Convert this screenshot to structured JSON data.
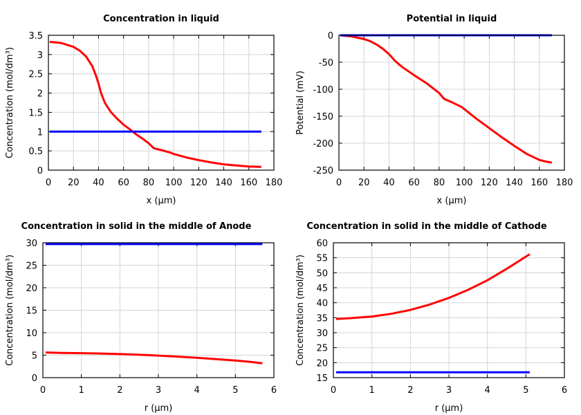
{
  "chart_data": [
    {
      "type": "line",
      "title": "Concentration in liquid",
      "xlabel": "x (µm)",
      "ylabel": "Concentration (mol/dm³)",
      "xlim": [
        0,
        180
      ],
      "ylim": [
        0,
        3.5
      ],
      "xticks": [
        0,
        20,
        40,
        60,
        80,
        100,
        120,
        140,
        160,
        180
      ],
      "yticks": [
        0,
        0.5,
        1,
        1.5,
        2,
        2.5,
        3,
        3.5
      ],
      "grid": true,
      "series": [
        {
          "color": "#ff0000",
          "x": [
            1,
            10,
            20,
            25,
            30,
            35,
            38,
            40,
            42,
            45,
            50,
            55,
            60,
            65,
            70,
            75,
            80,
            84,
            90,
            97,
            100,
            110,
            120,
            130,
            140,
            150,
            160,
            170
          ],
          "y": [
            3.33,
            3.3,
            3.2,
            3.1,
            2.95,
            2.7,
            2.45,
            2.25,
            2.0,
            1.75,
            1.5,
            1.33,
            1.18,
            1.06,
            0.93,
            0.82,
            0.7,
            0.57,
            0.52,
            0.46,
            0.42,
            0.33,
            0.26,
            0.2,
            0.15,
            0.12,
            0.095,
            0.085
          ]
        },
        {
          "color": "#0000ff",
          "x": [
            1,
            170
          ],
          "y": [
            1.0,
            1.0
          ]
        }
      ]
    },
    {
      "type": "line",
      "title": "Potential in liquid",
      "xlabel": "x (µm)",
      "ylabel": "Potential (mV)",
      "xlim": [
        0,
        180
      ],
      "ylim": [
        -250,
        0
      ],
      "xticks": [
        0,
        20,
        40,
        60,
        80,
        100,
        120,
        140,
        160,
        180
      ],
      "yticks": [
        -250,
        -200,
        -150,
        -100,
        -50,
        0
      ],
      "grid": true,
      "series": [
        {
          "color": "#ff0000",
          "x": [
            1,
            10,
            20,
            25,
            30,
            35,
            40,
            45,
            50,
            60,
            70,
            80,
            84,
            90,
            98,
            110,
            120,
            130,
            140,
            150,
            160,
            165,
            170
          ],
          "y": [
            0,
            -2,
            -7,
            -11,
            -17,
            -25,
            -35,
            -48,
            -58,
            -74,
            -89,
            -107,
            -118,
            -124,
            -133,
            -155,
            -172,
            -189,
            -205,
            -220,
            -231,
            -234,
            -236
          ]
        },
        {
          "color": "#0000ff",
          "x": [
            1,
            170
          ],
          "y": [
            0,
            0
          ]
        }
      ]
    },
    {
      "type": "line",
      "title": "Concentration in solid in the middle of Anode",
      "xlabel": "r (µm)",
      "ylabel": "Concentration (mol/dm³)",
      "xlim": [
        0,
        6
      ],
      "ylim": [
        0,
        30
      ],
      "xticks": [
        0,
        1,
        2,
        3,
        4,
        5,
        6
      ],
      "yticks": [
        0,
        5,
        10,
        15,
        20,
        25,
        30
      ],
      "grid": true,
      "series": [
        {
          "color": "#ff0000",
          "x": [
            0.07,
            0.5,
            1,
            1.5,
            2,
            2.5,
            3,
            3.5,
            4,
            4.5,
            5,
            5.4,
            5.7
          ],
          "y": [
            5.6,
            5.5,
            5.45,
            5.37,
            5.25,
            5.1,
            4.9,
            4.68,
            4.42,
            4.12,
            3.8,
            3.5,
            3.2
          ]
        },
        {
          "color": "#0000ff",
          "x": [
            0.07,
            5.7
          ],
          "y": [
            29.7,
            29.7
          ]
        }
      ]
    },
    {
      "type": "line",
      "title": "Concentration in solid in the middle of Cathode",
      "xlabel": "r (µm)",
      "ylabel": "Concentration (mol/dm³)",
      "xlim": [
        0,
        6
      ],
      "ylim": [
        15,
        60
      ],
      "xticks": [
        0,
        1,
        2,
        3,
        4,
        5,
        6
      ],
      "yticks": [
        15,
        20,
        25,
        30,
        35,
        40,
        45,
        50,
        55,
        60
      ],
      "grid": true,
      "series": [
        {
          "color": "#ff0000",
          "x": [
            0.07,
            0.5,
            1,
            1.5,
            2,
            2.5,
            3,
            3.5,
            4,
            4.5,
            5.1
          ],
          "y": [
            34.6,
            34.9,
            35.4,
            36.3,
            37.6,
            39.4,
            41.6,
            44.3,
            47.5,
            51.3,
            56.2
          ]
        },
        {
          "color": "#0000ff",
          "x": [
            0.07,
            5.1
          ],
          "y": [
            16.8,
            16.8
          ]
        }
      ]
    }
  ]
}
